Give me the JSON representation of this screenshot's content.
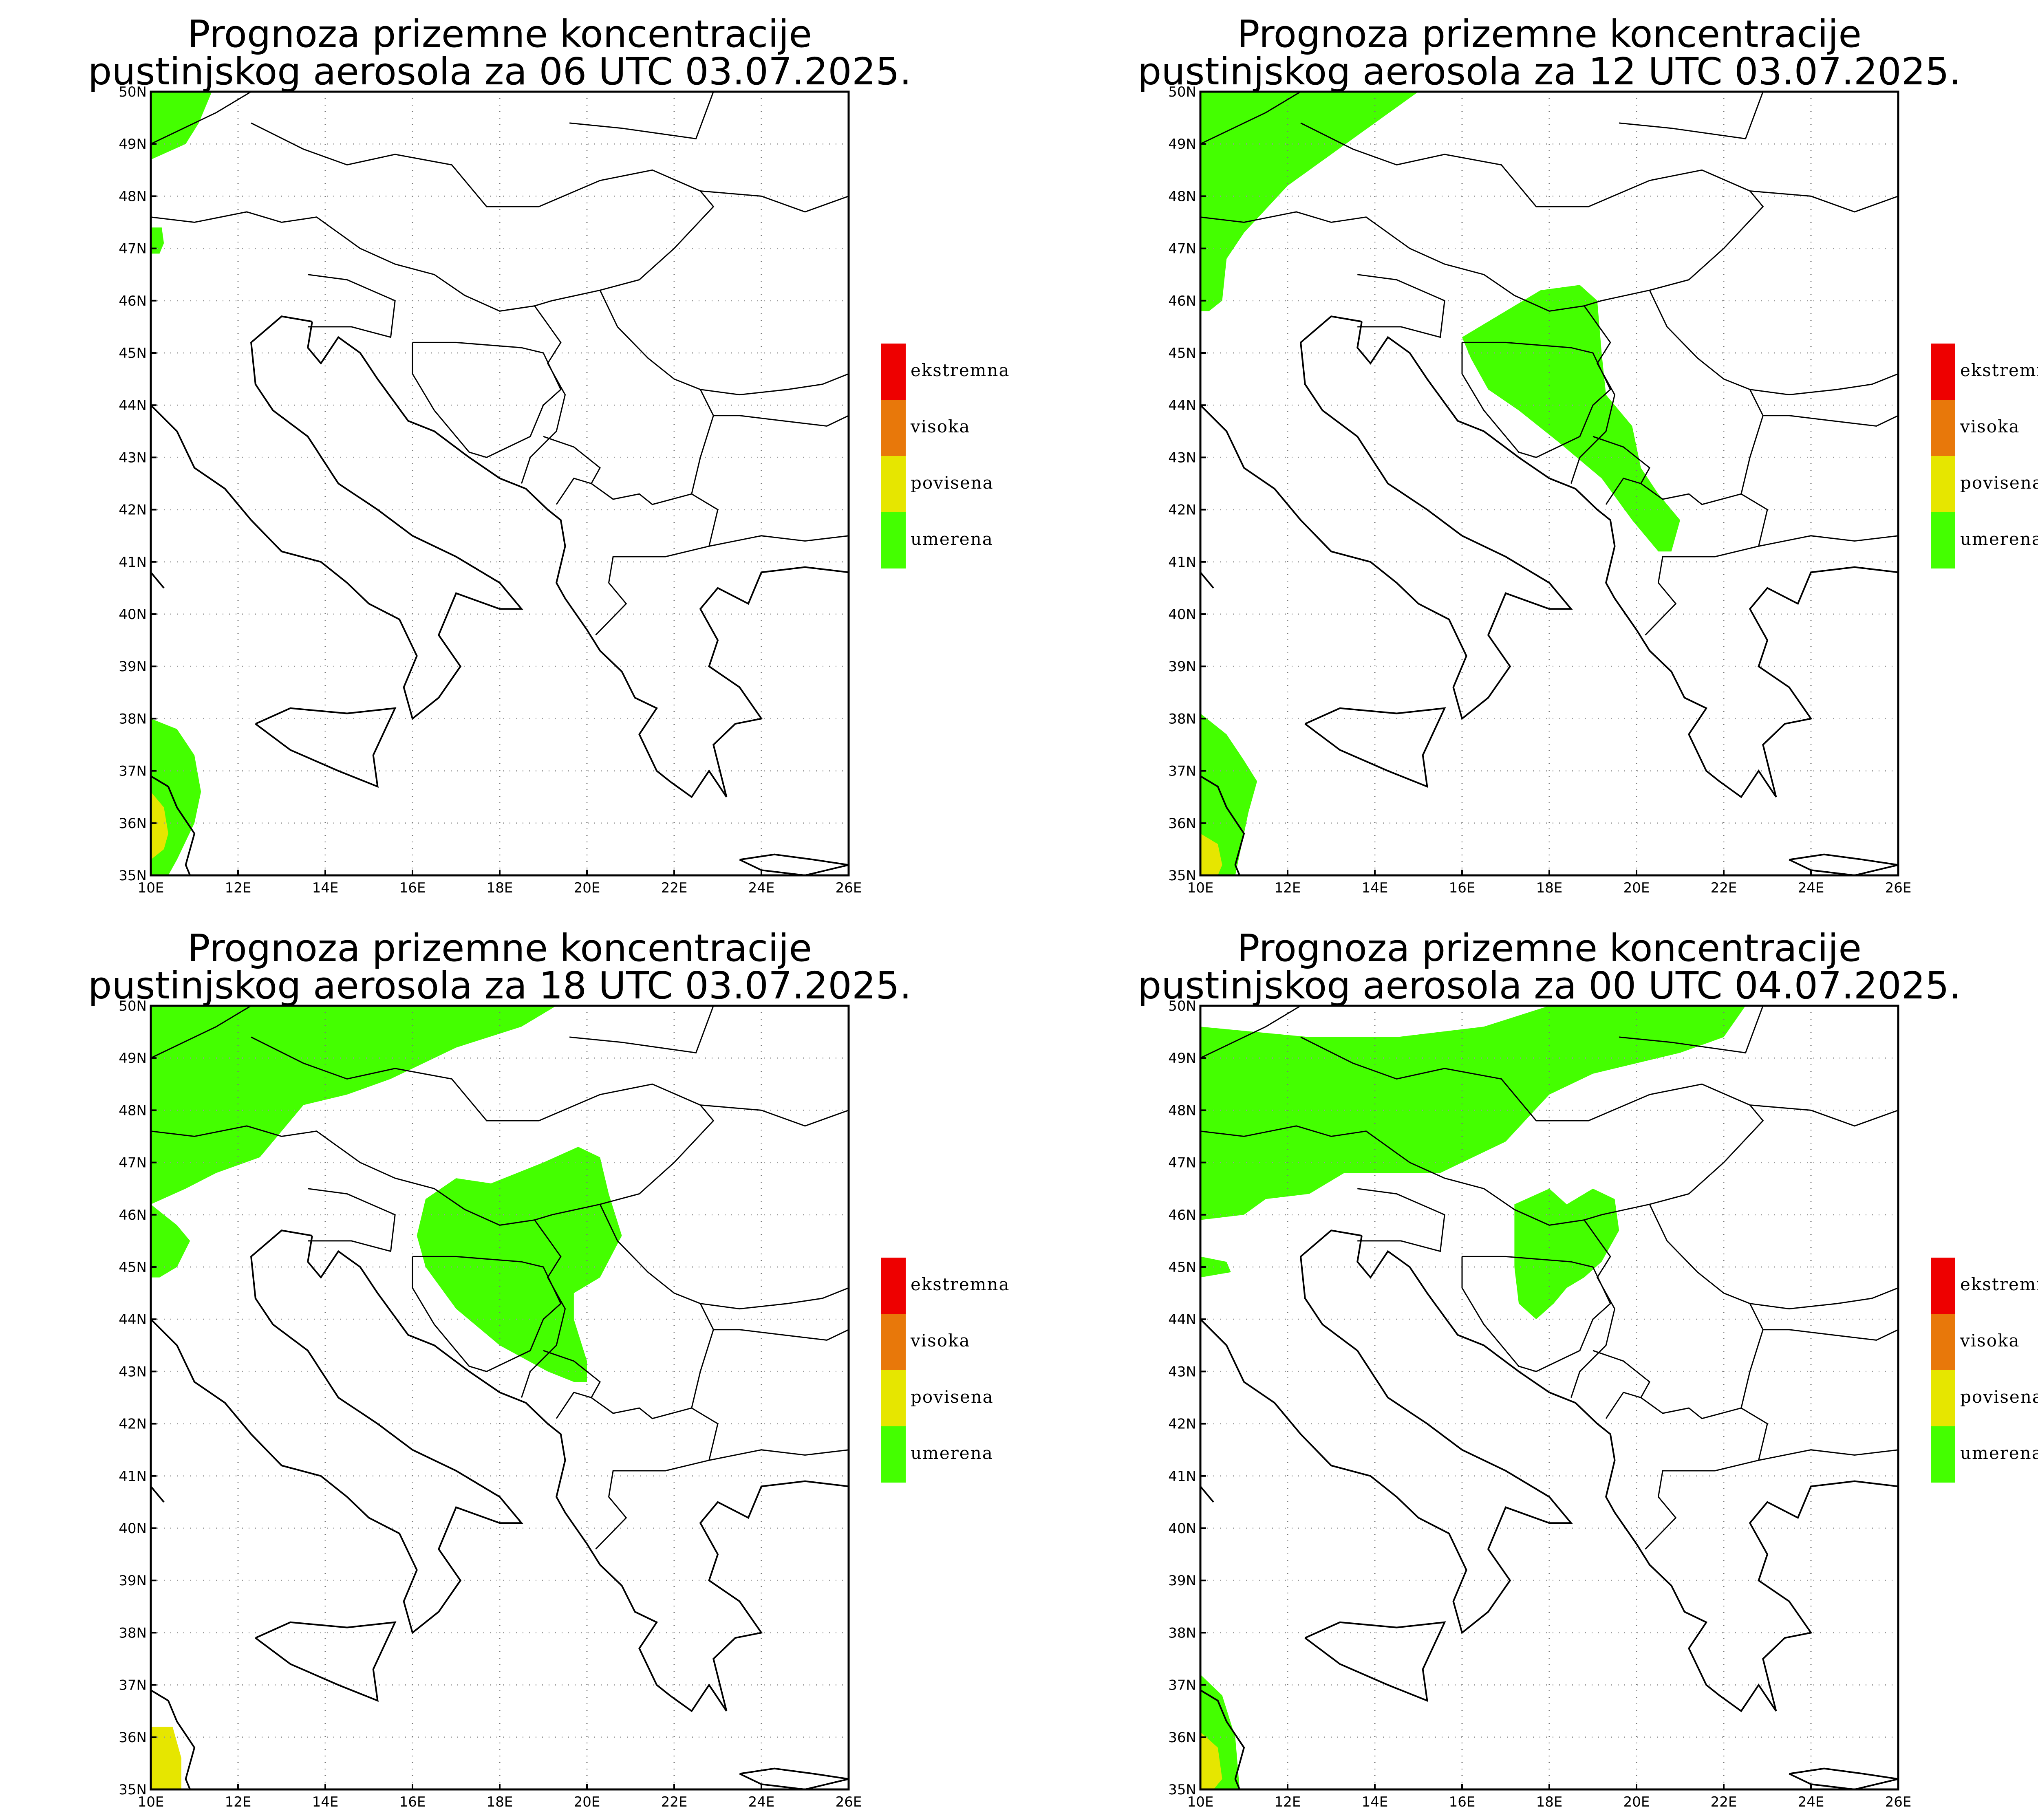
{
  "panels": [
    {
      "title_line1": "Prognoza prizemne koncentracije",
      "title_line2": "pustinjskog aerosola za 06 UTC 03.07.2025."
    },
    {
      "title_line1": "Prognoza prizemne koncentracije",
      "title_line2": "pustinjskog aerosola za 12 UTC 03.07.2025."
    },
    {
      "title_line1": "Prognoza prizemne koncentracije",
      "title_line2": "pustinjskog aerosola za 18 UTC 03.07.2025."
    },
    {
      "title_line1": "Prognoza prizemne koncentracije",
      "title_line2": "pustinjskog aerosola za 00 UTC 04.07.2025."
    }
  ],
  "lat_labels": [
    "50N",
    "49N",
    "48N",
    "47N",
    "46N",
    "45N",
    "44N",
    "43N",
    "42N",
    "41N",
    "40N",
    "39N",
    "38N",
    "37N",
    "36N",
    "35N"
  ],
  "lon_labels": [
    "10E",
    "12E",
    "14E",
    "16E",
    "18E",
    "20E",
    "22E",
    "24E",
    "26E"
  ],
  "legend": [
    {
      "label": "ekstremna",
      "color": "#ee0000"
    },
    {
      "label": "visoka",
      "color": "#e8780a"
    },
    {
      "label": "povisena",
      "color": "#e6e600"
    },
    {
      "label": "umerena",
      "color": "#44ff00"
    }
  ],
  "colors": {
    "moderate": "#44ff00",
    "elevated": "#e6e600"
  }
}
